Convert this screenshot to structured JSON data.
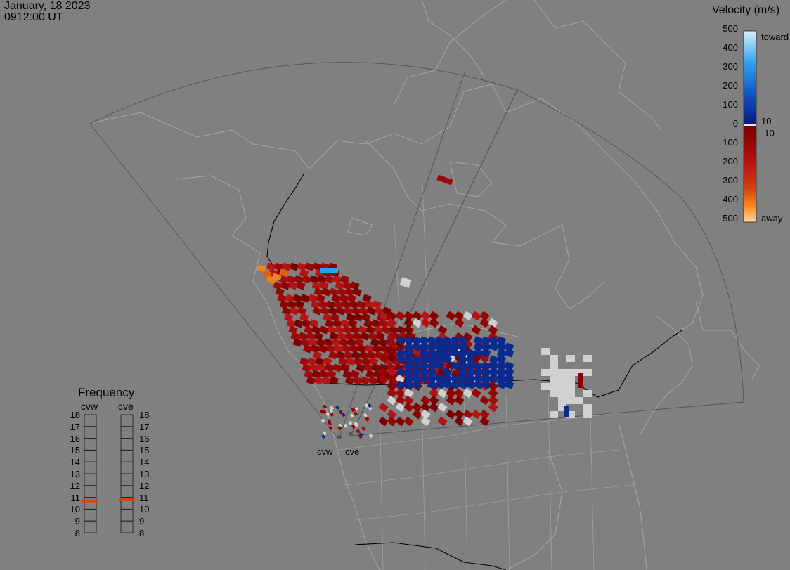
{
  "header": {
    "date": "January, 18 2023",
    "time": "0912:00 UT"
  },
  "colorbar": {
    "title": "Velocity (m/s)",
    "ticks": [
      "500",
      "400",
      "300",
      "200",
      "100",
      "0",
      "-100",
      "-200",
      "-300",
      "-400",
      "-500"
    ],
    "labels": {
      "toward": "toward",
      "pos_threshold": "10",
      "neg_threshold": "-10",
      "away": "away"
    },
    "colors": {
      "toward_light": "#d8f0ff",
      "toward_mid": "#2ea0f0",
      "toward_dark": "#0a2a90",
      "away_dark": "#7a0000",
      "away_mid": "#d24010",
      "away_light": "#ffd8a8",
      "near_zero": "#d0d0d0"
    }
  },
  "frequency_panel": {
    "title": "Frequency",
    "columns": [
      "cvw",
      "cve"
    ],
    "scale": [
      "18",
      "17",
      "16",
      "15",
      "14",
      "13",
      "12",
      "11",
      "10",
      "9",
      "8"
    ],
    "markers_mhz": {
      "cvw": 10.7,
      "cve": 10.8
    },
    "marker_color": "#e04010"
  },
  "radar_sites": [
    "cvw",
    "cve"
  ],
  "map": {
    "background": "#808080",
    "coastline_color": "#a8a8a8",
    "border_color": "#000000",
    "fov_color": "#555555"
  }
}
